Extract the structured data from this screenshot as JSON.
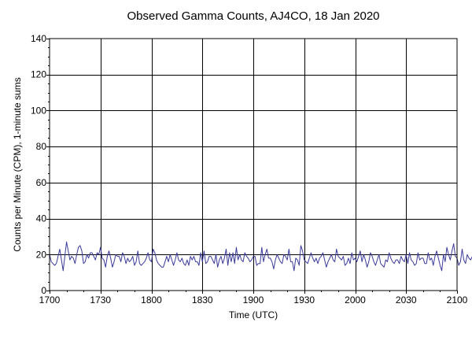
{
  "chart_data": {
    "type": "line",
    "title": "Observed Gamma Counts, AJ4CO, 18 Jan 2020",
    "xlabel": "Time (UTC)",
    "ylabel": "Counts per Minute (CPM), 1-minute sums",
    "x_tick_labels": [
      "1700",
      "1730",
      "1800",
      "1830",
      "1900",
      "1930",
      "2000",
      "2030",
      "2100"
    ],
    "y_tick_labels": [
      "0",
      "20",
      "40",
      "60",
      "80",
      "100",
      "120",
      "140"
    ],
    "xlim": [
      "1700",
      "2100"
    ],
    "ylim": [
      0,
      140
    ],
    "grid": true,
    "legend": "none",
    "series": [
      {
        "color": "#3a3a9a",
        "x_start": "1700",
        "x_step_minutes": 1,
        "values": [
          20,
          16,
          15,
          14,
          15,
          19,
          23,
          17,
          11,
          19,
          27,
          22,
          17,
          19,
          18,
          15,
          20,
          24,
          25,
          22,
          15,
          16,
          20,
          18,
          21,
          21,
          19,
          17,
          21,
          20,
          24,
          18,
          17,
          13,
          19,
          22,
          18,
          13,
          16,
          20,
          19,
          19,
          16,
          21,
          19,
          15,
          18,
          16,
          17,
          19,
          14,
          16,
          22,
          15,
          14,
          15,
          16,
          18,
          21,
          17,
          16,
          23,
          21,
          17,
          15,
          14,
          13,
          13,
          16,
          19,
          16,
          20,
          17,
          14,
          17,
          21,
          17,
          16,
          18,
          15,
          14,
          17,
          14,
          19,
          17,
          19,
          16,
          16,
          14,
          21,
          16,
          22,
          15,
          16,
          19,
          19,
          17,
          15,
          20,
          13,
          17,
          19,
          15,
          18,
          23,
          14,
          21,
          16,
          21,
          15,
          24,
          17,
          20,
          17,
          16,
          21,
          19,
          18,
          16,
          17,
          19,
          19,
          14,
          15,
          15,
          24,
          16,
          20,
          23,
          18,
          18,
          16,
          12,
          17,
          20,
          18,
          16,
          15,
          20,
          19,
          17,
          23,
          16,
          16,
          11,
          18,
          17,
          14,
          25,
          22,
          17,
          16,
          15,
          18,
          21,
          18,
          16,
          18,
          15,
          18,
          19,
          21,
          17,
          13,
          16,
          18,
          20,
          17,
          16,
          23,
          19,
          18,
          17,
          19,
          14,
          15,
          18,
          15,
          21,
          17,
          18,
          16,
          19,
          22,
          16,
          20,
          17,
          13,
          16,
          21,
          19,
          16,
          14,
          17,
          20,
          15,
          14,
          13,
          17,
          16,
          21,
          18,
          16,
          15,
          17,
          17,
          15,
          19,
          17,
          16,
          20,
          15,
          21,
          17,
          16,
          14,
          15,
          21,
          17,
          18,
          18,
          15,
          15,
          21,
          17,
          18,
          14,
          19,
          22,
          18,
          14,
          11,
          20,
          16,
          24,
          20,
          17,
          22,
          26,
          19,
          18,
          14,
          16,
          23,
          17,
          15,
          20,
          18,
          17,
          19,
          12,
          16,
          14,
          20,
          19,
          21,
          16,
          14,
          19,
          19,
          25,
          17,
          22,
          21,
          15,
          20,
          14,
          16,
          17,
          19,
          20,
          19,
          18,
          17,
          21,
          14,
          19,
          22,
          23,
          19,
          14,
          18,
          20,
          19,
          22,
          13,
          16,
          21,
          17,
          17,
          15,
          22,
          20,
          19,
          19,
          14,
          18,
          15,
          17,
          15,
          16,
          14,
          21,
          16,
          19,
          18,
          21,
          18,
          14,
          16,
          18,
          15,
          18,
          17,
          23,
          17,
          17,
          19,
          18,
          20,
          14,
          15,
          19,
          22,
          18,
          21,
          21,
          18,
          15,
          15,
          16,
          24,
          23,
          18,
          19,
          15,
          19,
          13,
          16,
          16,
          15,
          19,
          21,
          24,
          16,
          14,
          21,
          21,
          17,
          15,
          18,
          21,
          18,
          11,
          17,
          17,
          24,
          15,
          17,
          15,
          14,
          11,
          22,
          23,
          18,
          17,
          21,
          18,
          12,
          22,
          17,
          21,
          17,
          18,
          22,
          14,
          19,
          15,
          21,
          17,
          22,
          25,
          17,
          16,
          20,
          19,
          19,
          17,
          20,
          16,
          14,
          17,
          22,
          15,
          18,
          20,
          13,
          17,
          16
        ]
      }
    ]
  }
}
